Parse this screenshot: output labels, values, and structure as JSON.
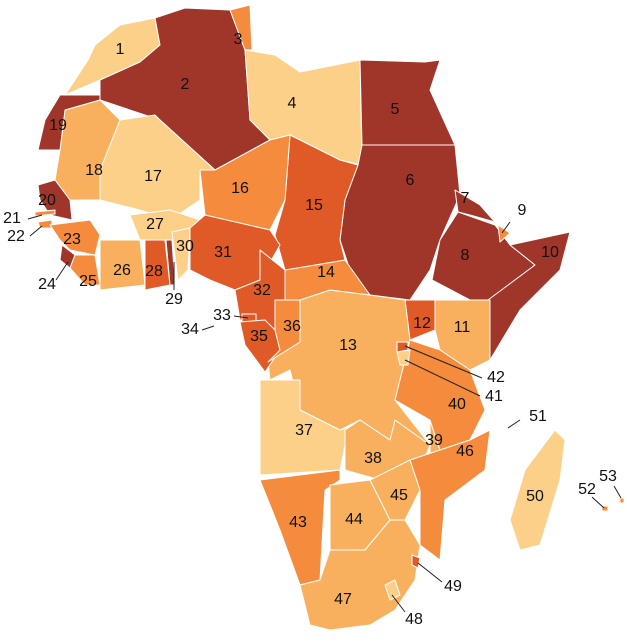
{
  "labels": [
    "1",
    "2",
    "3",
    "4",
    "5",
    "6",
    "7",
    "8",
    "9",
    "10",
    "11",
    "12",
    "13",
    "14",
    "15",
    "16",
    "17",
    "18",
    "19",
    "20",
    "21",
    "22",
    "23",
    "24",
    "25",
    "26",
    "27",
    "28",
    "29",
    "30",
    "31",
    "32",
    "33",
    "34",
    "35",
    "36",
    "37",
    "38",
    "39",
    "40",
    "41",
    "42",
    "43",
    "44",
    "45",
    "46",
    "47",
    "48",
    "49",
    "50",
    "51",
    "52",
    "53"
  ]
}
